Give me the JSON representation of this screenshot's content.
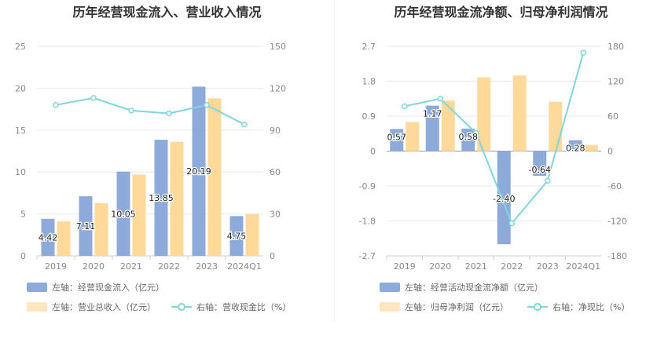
{
  "chart_data": [
    {
      "type": "bar+line",
      "title": "历年经营现金流入、营业收入情况",
      "categories": [
        "2019",
        "2020",
        "2021",
        "2022",
        "2023",
        "2024Q1"
      ],
      "left_axis": {
        "ticks": [
          "0",
          "5",
          "10",
          "15",
          "20",
          "25"
        ],
        "ylim": [
          0,
          25
        ]
      },
      "right_axis": {
        "ticks": [
          "0",
          "30",
          "60",
          "90",
          "120",
          "150"
        ],
        "ylim": [
          0,
          150
        ]
      },
      "series": [
        {
          "name": "左轴：经营现金流入（亿元）",
          "axis": "left",
          "kind": "bar",
          "color": "#8eaadb",
          "values": [
            4.42,
            7.11,
            10.05,
            13.85,
            20.19,
            4.75
          ],
          "labels": [
            "4.42",
            "7.11",
            "10.05",
            "13.85",
            "20.19",
            "4.75"
          ]
        },
        {
          "name": "左轴：营业总收入（亿元）",
          "axis": "left",
          "kind": "bar",
          "color": "#ffd99a",
          "values": [
            4.1,
            6.3,
            9.7,
            13.6,
            18.8,
            5.0
          ]
        },
        {
          "name": "右轴：营收现金比（%）",
          "axis": "right",
          "kind": "line",
          "color": "#7fd6dd",
          "values": [
            108,
            113,
            104,
            102,
            108,
            94
          ]
        }
      ]
    },
    {
      "type": "bar+line",
      "title": "历年经营现金流净额、归母净利润情况",
      "categories": [
        "2019",
        "2020",
        "2021",
        "2022",
        "2023",
        "2024Q1"
      ],
      "left_axis": {
        "ticks": [
          "-2.7",
          "-1.8",
          "-0.9",
          "0",
          "0.9",
          "1.8",
          "2.7"
        ],
        "ylim": [
          -2.7,
          2.7
        ]
      },
      "right_axis": {
        "ticks": [
          "-180",
          "-120",
          "-60",
          "0",
          "60",
          "120",
          "180"
        ],
        "ylim": [
          -180,
          180
        ]
      },
      "series": [
        {
          "name": "左轴：经营活动现金流净额（亿元）",
          "axis": "left",
          "kind": "bar",
          "color": "#8eaadb",
          "values": [
            0.57,
            1.17,
            0.58,
            -2.4,
            -0.64,
            0.28
          ],
          "labels": [
            "0.57",
            "1.17",
            "0.58",
            "-2.40",
            "-0.64",
            "0.28"
          ]
        },
        {
          "name": "左轴：归母净利润（亿元）",
          "axis": "left",
          "kind": "bar",
          "color": "#ffd99a",
          "values": [
            0.75,
            1.3,
            1.9,
            1.95,
            1.27,
            0.16
          ]
        },
        {
          "name": "右轴：净现比（%）",
          "axis": "right",
          "kind": "line",
          "color": "#7fd6dd",
          "values": [
            77,
            90,
            31,
            -124,
            -51,
            169
          ]
        }
      ]
    }
  ]
}
